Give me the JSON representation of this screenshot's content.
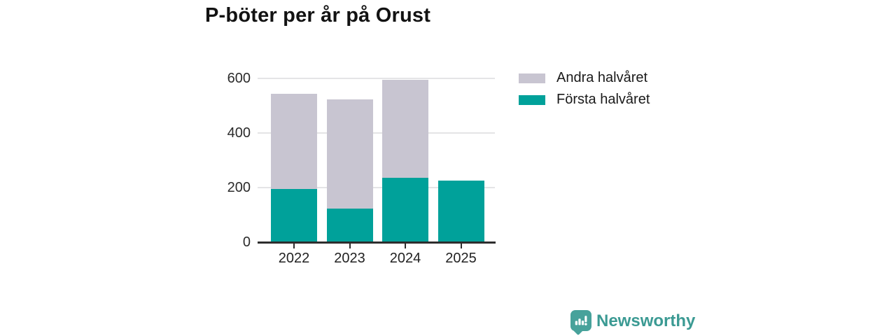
{
  "title": "P-böter per år på Orust",
  "brand": {
    "name": "Newsworthy"
  },
  "colors": {
    "first_half": "#00a19a",
    "second_half": "#c8c5d1",
    "gridline": "#e4e4e6",
    "axis": "#2e2e2e",
    "logo": "#47a29b",
    "brand_text": "#3b9a93"
  },
  "chart_data": {
    "type": "bar",
    "stacked": true,
    "title": "P-böter per år på Orust",
    "categories": [
      "2022",
      "2023",
      "2024",
      "2025"
    ],
    "series": [
      {
        "name": "Andra halvåret",
        "color": "#c8c5d1",
        "values": [
          347,
          400,
          357,
          0
        ]
      },
      {
        "name": "Första halvåret",
        "color": "#00a19a",
        "values": [
          196,
          123,
          237,
          226
        ]
      }
    ],
    "totals": [
      543,
      523,
      594,
      226
    ],
    "xlabel": "",
    "ylabel": "",
    "ylim": [
      0,
      600
    ],
    "yticks": [
      0,
      200,
      400,
      600
    ],
    "grid": true,
    "legend_position": "right"
  }
}
